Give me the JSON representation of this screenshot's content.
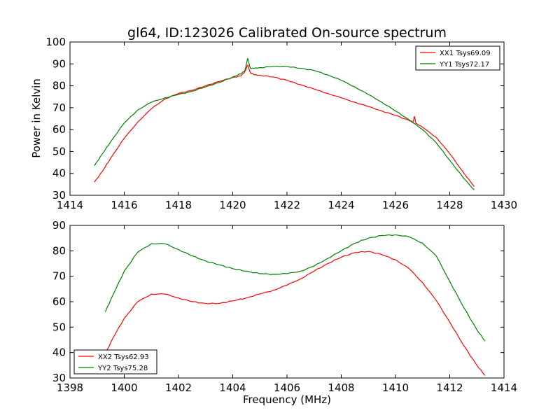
{
  "figure": {
    "title": "gl64, ID:123026 Calibrated On-source spectrum",
    "ylabel": "Power in Kelvin",
    "xlabel": "Frequency (MHz)"
  },
  "chart_data": [
    {
      "type": "line",
      "title": "gl64, ID:123026 Calibrated On-source spectrum",
      "ylabel": "Power in Kelvin",
      "xlabel": "",
      "xlim": [
        1414,
        1430
      ],
      "ylim": [
        30,
        100
      ],
      "xticks": [
        1414,
        1416,
        1418,
        1420,
        1422,
        1424,
        1426,
        1428,
        1430
      ],
      "yticks": [
        30,
        40,
        50,
        60,
        70,
        80,
        90,
        100
      ],
      "legend_position": "top-right",
      "grid": false,
      "series": [
        {
          "name": "XX1 Tsys69.09",
          "color": "#ff0000",
          "x": [
            1414.9,
            1415.2,
            1415.5,
            1416.0,
            1416.5,
            1417.0,
            1417.5,
            1418.0,
            1418.5,
            1419.0,
            1419.5,
            1420.0,
            1420.3,
            1420.45,
            1420.55,
            1420.65,
            1420.8,
            1421.0,
            1421.5,
            1422.0,
            1422.5,
            1423.0,
            1423.5,
            1424.0,
            1424.5,
            1425.0,
            1425.5,
            1426.0,
            1426.5,
            1426.65,
            1426.7,
            1426.75,
            1427.0,
            1427.5,
            1428.0,
            1428.5,
            1428.9
          ],
          "y": [
            36.0,
            41.0,
            47.0,
            56.0,
            63.5,
            69.5,
            74.0,
            76.5,
            78.0,
            80.0,
            82.0,
            83.8,
            84.5,
            86.5,
            89.5,
            86.0,
            85.0,
            84.8,
            84.0,
            82.5,
            80.5,
            78.5,
            76.5,
            74.5,
            72.5,
            70.5,
            68.5,
            66.5,
            64.2,
            63.5,
            66.0,
            63.0,
            61.0,
            56.5,
            49.0,
            40.5,
            34.0
          ]
        },
        {
          "name": "YY1 Tsys72.17",
          "color": "#008000",
          "x": [
            1414.9,
            1415.2,
            1415.5,
            1416.0,
            1416.5,
            1417.0,
            1417.5,
            1418.0,
            1418.5,
            1419.0,
            1419.5,
            1420.0,
            1420.3,
            1420.45,
            1420.55,
            1420.65,
            1420.8,
            1421.0,
            1421.5,
            1422.0,
            1422.5,
            1423.0,
            1423.5,
            1424.0,
            1424.5,
            1425.0,
            1425.5,
            1426.0,
            1426.5,
            1427.0,
            1427.5,
            1428.0,
            1428.5,
            1428.9
          ],
          "y": [
            43.5,
            49.0,
            54.5,
            63.0,
            69.0,
            72.5,
            74.5,
            76.0,
            77.5,
            79.5,
            81.5,
            84.0,
            85.5,
            87.0,
            92.5,
            88.0,
            88.0,
            88.3,
            88.8,
            88.8,
            88.0,
            87.0,
            85.0,
            82.5,
            79.5,
            76.0,
            72.5,
            68.5,
            64.5,
            60.0,
            54.0,
            46.0,
            38.0,
            32.5
          ]
        }
      ]
    },
    {
      "type": "line",
      "title": "",
      "ylabel": "",
      "xlabel": "Frequency (MHz)",
      "xlim": [
        1398,
        1414
      ],
      "ylim": [
        30,
        90
      ],
      "xticks": [
        1398,
        1400,
        1402,
        1404,
        1406,
        1408,
        1410,
        1412,
        1414
      ],
      "yticks": [
        30,
        40,
        50,
        60,
        70,
        80,
        90
      ],
      "legend_position": "bottom-left",
      "grid": false,
      "series": [
        {
          "name": "XX2 Tsys62.93",
          "color": "#ff0000",
          "x": [
            1399.3,
            1399.6,
            1400.0,
            1400.5,
            1401.0,
            1401.5,
            1402.0,
            1402.5,
            1403.0,
            1403.5,
            1404.0,
            1404.5,
            1405.0,
            1405.5,
            1406.0,
            1406.5,
            1407.0,
            1407.5,
            1408.0,
            1408.5,
            1409.0,
            1409.5,
            1410.0,
            1410.5,
            1411.0,
            1411.5,
            1412.0,
            1412.5,
            1413.0,
            1413.3
          ],
          "y": [
            39.5,
            46.0,
            53.5,
            60.0,
            63.0,
            63.0,
            61.5,
            60.0,
            59.3,
            59.3,
            60.3,
            61.5,
            63.0,
            64.5,
            66.5,
            69.0,
            72.0,
            75.0,
            77.5,
            79.3,
            79.8,
            78.5,
            76.5,
            73.0,
            67.5,
            60.5,
            52.0,
            43.0,
            35.0,
            31.0
          ]
        },
        {
          "name": "YY2 Tsys75.28",
          "color": "#008000",
          "x": [
            1399.3,
            1399.6,
            1400.0,
            1400.5,
            1401.0,
            1401.5,
            1402.0,
            1402.5,
            1403.0,
            1403.5,
            1404.0,
            1404.5,
            1405.0,
            1405.5,
            1406.0,
            1406.5,
            1407.0,
            1407.5,
            1408.0,
            1408.5,
            1409.0,
            1409.5,
            1410.0,
            1410.5,
            1411.0,
            1411.5,
            1412.0,
            1412.5,
            1413.0,
            1413.3
          ],
          "y": [
            56.0,
            63.0,
            72.0,
            79.5,
            82.8,
            82.8,
            80.5,
            78.0,
            76.0,
            74.5,
            73.0,
            72.0,
            71.0,
            70.8,
            71.0,
            72.0,
            74.0,
            77.0,
            80.0,
            83.0,
            85.0,
            86.0,
            86.3,
            85.5,
            83.0,
            78.0,
            68.0,
            58.0,
            49.0,
            44.5
          ]
        }
      ]
    }
  ]
}
